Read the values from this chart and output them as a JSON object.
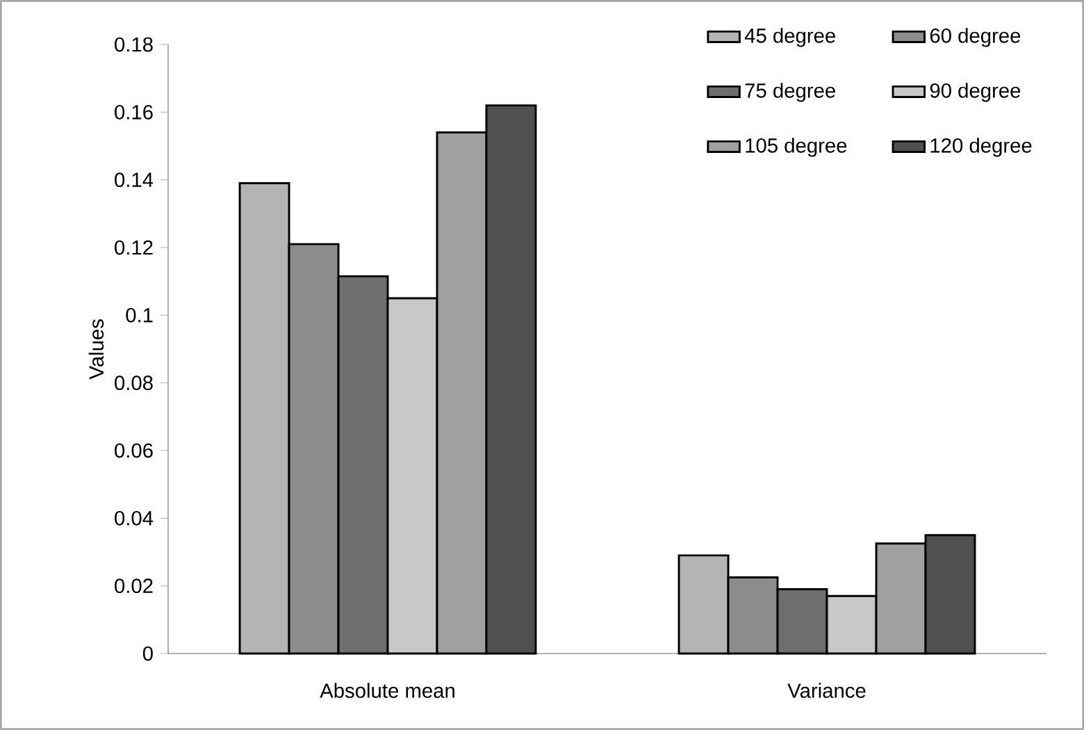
{
  "chart_data": {
    "type": "bar",
    "ylabel": "Values",
    "categories": [
      "Absolute mean",
      "Variance"
    ],
    "series": [
      {
        "name": "45 degree",
        "color": "#b4b4b4",
        "values": [
          0.139,
          0.029
        ]
      },
      {
        "name": "60 degree",
        "color": "#8c8c8c",
        "values": [
          0.121,
          0.0225
        ]
      },
      {
        "name": "75 degree",
        "color": "#6e6e6e",
        "values": [
          0.1115,
          0.019
        ]
      },
      {
        "name": "90 degree",
        "color": "#c8c8c8",
        "values": [
          0.105,
          0.017
        ]
      },
      {
        "name": "105 degree",
        "color": "#a0a0a0",
        "values": [
          0.154,
          0.0325
        ]
      },
      {
        "name": "120 degree",
        "color": "#505050",
        "values": [
          0.162,
          0.035
        ]
      }
    ],
    "ylim": [
      0,
      0.18
    ],
    "yticks": [
      0,
      0.02,
      0.04,
      0.06,
      0.08,
      0.1,
      0.12,
      0.14,
      0.16,
      0.18
    ],
    "legend": "top right"
  }
}
